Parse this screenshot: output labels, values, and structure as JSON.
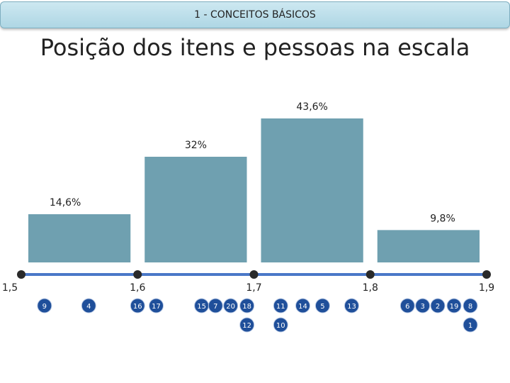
{
  "header": {
    "label": "1 - CONCEITOS BÁSICOS"
  },
  "title": "Posição dos itens e pessoas na escala",
  "colors": {
    "bar": "#6fa0b0",
    "axis": "#4a78c8",
    "tick_dot": "#2a2a2a",
    "marker": "#1f4f9a",
    "marker_text": "#ffffff"
  },
  "chart_data": {
    "type": "bar",
    "xlim": [
      1.5,
      1.9
    ],
    "bins": [
      {
        "from": 1.5,
        "to": 1.6,
        "value": 14.6,
        "label": "14,6%"
      },
      {
        "from": 1.6,
        "to": 1.7,
        "value": 32,
        "label": "32%"
      },
      {
        "from": 1.7,
        "to": 1.8,
        "value": 43.6,
        "label": "43,6%"
      },
      {
        "from": 1.8,
        "to": 1.9,
        "value": 9.8,
        "label": "9,8%"
      }
    ],
    "ticks": [
      {
        "value": 1.5,
        "label": "1,5"
      },
      {
        "value": 1.6,
        "label": "1,6"
      },
      {
        "value": 1.7,
        "label": "1,7"
      },
      {
        "value": 1.8,
        "label": "1,8"
      },
      {
        "value": 1.9,
        "label": "1,9"
      }
    ],
    "items": [
      {
        "id": "9",
        "position": 1.52,
        "row": 0
      },
      {
        "id": "4",
        "position": 1.558,
        "row": 0
      },
      {
        "id": "16",
        "position": 1.6,
        "row": 0
      },
      {
        "id": "17",
        "position": 1.616,
        "row": 0
      },
      {
        "id": "15",
        "position": 1.655,
        "row": 0
      },
      {
        "id": "7",
        "position": 1.667,
        "row": 0
      },
      {
        "id": "20",
        "position": 1.68,
        "row": 0
      },
      {
        "id": "18",
        "position": 1.694,
        "row": 0
      },
      {
        "id": "12",
        "position": 1.694,
        "row": 1
      },
      {
        "id": "11",
        "position": 1.723,
        "row": 0
      },
      {
        "id": "10",
        "position": 1.723,
        "row": 1
      },
      {
        "id": "14",
        "position": 1.742,
        "row": 0
      },
      {
        "id": "5",
        "position": 1.759,
        "row": 0
      },
      {
        "id": "13",
        "position": 1.784,
        "row": 0
      },
      {
        "id": "6",
        "position": 1.832,
        "row": 0
      },
      {
        "id": "3",
        "position": 1.845,
        "row": 0
      },
      {
        "id": "2",
        "position": 1.858,
        "row": 0
      },
      {
        "id": "19",
        "position": 1.872,
        "row": 0
      },
      {
        "id": "8",
        "position": 1.886,
        "row": 0
      },
      {
        "id": "1",
        "position": 1.886,
        "row": 1
      }
    ]
  }
}
